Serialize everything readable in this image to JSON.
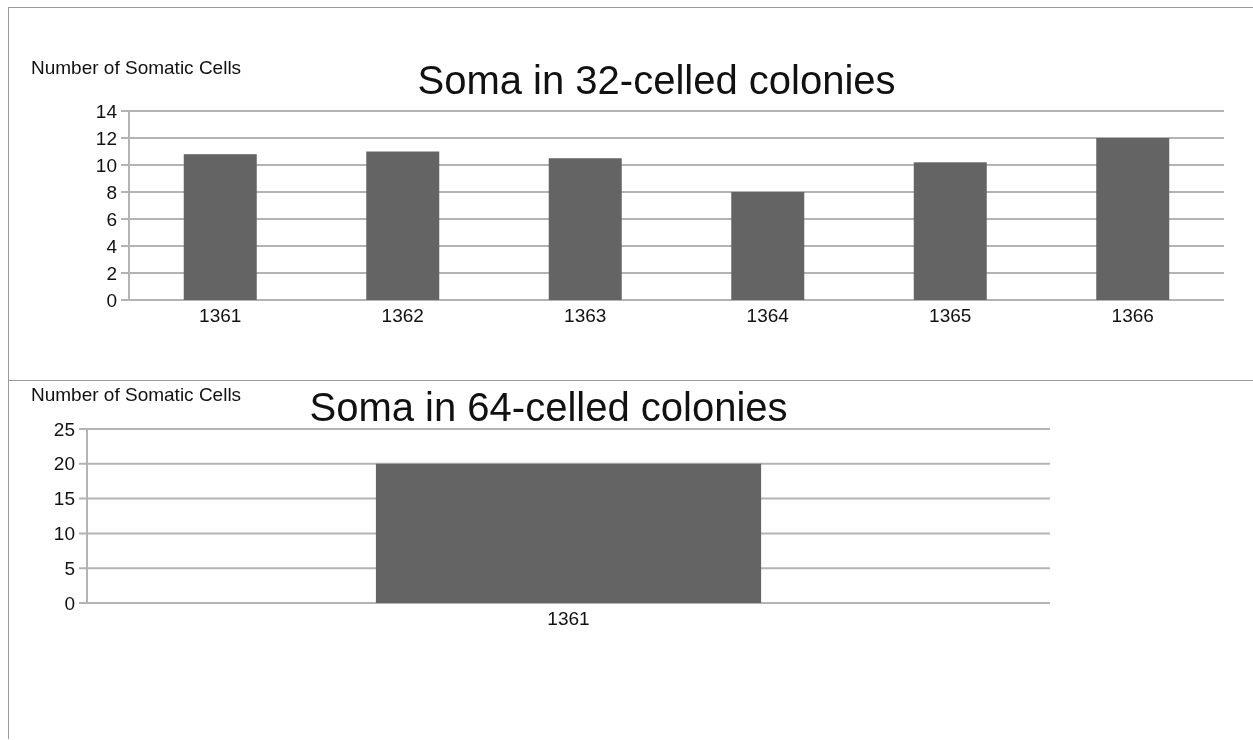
{
  "chart_data": [
    {
      "type": "bar",
      "title": "Soma in 32-celled colonies",
      "ylabel": "Number of Somatic Cells",
      "categories": [
        "1361",
        "1362",
        "1363",
        "1364",
        "1365",
        "1366"
      ],
      "values": [
        10.8,
        11.0,
        10.5,
        8.0,
        10.2,
        12.0
      ],
      "color": "#646464",
      "ylim": [
        0,
        14
      ],
      "yticks": [
        0,
        2,
        4,
        6,
        8,
        10,
        12,
        14
      ],
      "grid": "y"
    },
    {
      "type": "bar",
      "title": "Soma in 64-celled colonies",
      "ylabel": "Number of Somatic Cells",
      "categories": [
        "1361"
      ],
      "values": [
        20
      ],
      "color": "#646464",
      "ylim": [
        0,
        25
      ],
      "yticks": [
        0,
        5,
        10,
        15,
        20,
        25
      ],
      "grid": "y"
    }
  ]
}
